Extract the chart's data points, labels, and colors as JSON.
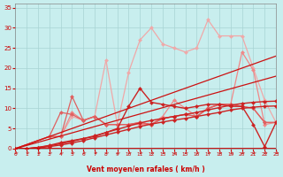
{
  "xlabel": "Vent moyen/en rafales ( km/h )",
  "bg_color": "#c8eeee",
  "grid_color": "#a8d4d4",
  "xlim": [
    0,
    23
  ],
  "ylim": [
    0,
    36
  ],
  "xticks": [
    0,
    1,
    2,
    3,
    4,
    5,
    6,
    7,
    8,
    9,
    10,
    11,
    12,
    13,
    14,
    15,
    16,
    17,
    18,
    19,
    20,
    21,
    22,
    23
  ],
  "yticks": [
    0,
    5,
    10,
    15,
    20,
    25,
    30,
    35
  ],
  "series": [
    {
      "x": [
        0,
        3,
        4,
        5,
        6,
        7,
        8,
        9,
        10,
        11,
        12,
        13,
        14,
        15,
        16,
        17,
        18,
        19,
        20,
        21,
        22,
        23
      ],
      "y": [
        0,
        3,
        3,
        8,
        7,
        8,
        22,
        6,
        19,
        27,
        30,
        26,
        25,
        24,
        25,
        32,
        28,
        28,
        28,
        20,
        12,
        6.5
      ],
      "color": "#f0a8a8",
      "lw": 0.9,
      "marker": "D",
      "ms": 2.2
    },
    {
      "x": [
        0,
        3,
        4,
        5,
        6,
        7,
        8,
        9,
        10,
        11,
        12,
        13,
        14,
        15,
        16,
        17,
        18,
        19,
        20,
        21,
        22,
        23
      ],
      "y": [
        0,
        3,
        3,
        9,
        7,
        8,
        6,
        6,
        6,
        6,
        6,
        8,
        12,
        10,
        8,
        10,
        11,
        11,
        24,
        19.5,
        6,
        6.5
      ],
      "color": "#f08888",
      "lw": 0.9,
      "marker": "D",
      "ms": 2.2
    },
    {
      "x": [
        0,
        3,
        4,
        5,
        6,
        7,
        8,
        9,
        10,
        11,
        12,
        13,
        14,
        15,
        16,
        17,
        18,
        19,
        20,
        21,
        22,
        23
      ],
      "y": [
        0,
        3,
        3,
        13,
        7,
        8,
        6,
        6,
        6,
        6.5,
        6,
        7.5,
        8,
        8.5,
        8,
        10,
        11,
        11,
        10.5,
        10,
        6.5,
        6.5
      ],
      "color": "#e06060",
      "lw": 0.9,
      "marker": "D",
      "ms": 2.2
    },
    {
      "x": [
        0,
        3,
        4,
        5,
        6,
        7,
        8,
        9,
        10,
        11,
        12,
        13,
        14,
        15,
        16,
        17,
        18,
        19,
        20,
        21,
        22,
        23
      ],
      "y": [
        0,
        3,
        9,
        8.5,
        7,
        8,
        6,
        6,
        6,
        6.5,
        6,
        7.5,
        8,
        8.5,
        8,
        10,
        11,
        11,
        10.5,
        10,
        6.5,
        6.5
      ],
      "color": "#e06060",
      "lw": 0.9,
      "marker": "D",
      "ms": 2.2
    },
    {
      "x": [
        0,
        1,
        2,
        3,
        4,
        5,
        6,
        7,
        8,
        9,
        10,
        11,
        12,
        13,
        14,
        15,
        16,
        17,
        18,
        19,
        20,
        21,
        22,
        23
      ],
      "y": [
        0,
        0,
        0.3,
        0.8,
        1.5,
        2,
        2.5,
        3,
        4,
        5,
        10.5,
        15,
        11.5,
        11,
        10.5,
        10,
        10.5,
        11,
        11,
        10.5,
        10.5,
        6,
        0.5,
        6.5
      ],
      "color": "#cc2222",
      "lw": 1.0,
      "marker": "D",
      "ms": 2.2
    },
    {
      "x": [
        0,
        1,
        2,
        3,
        4,
        5,
        6,
        7,
        8,
        9,
        10,
        11,
        12,
        13,
        14,
        15,
        16,
        17,
        18,
        19,
        20,
        21,
        22,
        23
      ],
      "y": [
        0,
        0,
        0.3,
        0.7,
        1.2,
        1.8,
        2.5,
        3.2,
        4.0,
        4.8,
        5.6,
        6.4,
        7.0,
        7.5,
        8.0,
        8.5,
        9.0,
        9.6,
        10.2,
        10.8,
        11.2,
        11.5,
        11.7,
        11.8
      ],
      "color": "#cc2222",
      "lw": 1.0,
      "marker": "D",
      "ms": 2.2
    },
    {
      "x": [
        0,
        1,
        2,
        3,
        4,
        5,
        6,
        7,
        8,
        9,
        10,
        11,
        12,
        13,
        14,
        15,
        16,
        17,
        18,
        19,
        20,
        21,
        22,
        23
      ],
      "y": [
        0,
        0,
        0.2,
        0.5,
        0.9,
        1.4,
        2.0,
        2.7,
        3.4,
        4.1,
        4.8,
        5.5,
        6.1,
        6.6,
        7.1,
        7.5,
        8.0,
        8.5,
        9.0,
        9.6,
        10.0,
        10.3,
        10.5,
        10.6
      ],
      "color": "#cc2222",
      "lw": 1.0,
      "marker": "D",
      "ms": 2.2
    },
    {
      "x": [
        0,
        23
      ],
      "y": [
        0,
        23
      ],
      "color": "#cc1111",
      "lw": 0.9,
      "marker": null,
      "ms": 0
    },
    {
      "x": [
        0,
        23
      ],
      "y": [
        0,
        18
      ],
      "color": "#cc1111",
      "lw": 0.9,
      "marker": null,
      "ms": 0
    }
  ],
  "arrows_x": [
    0,
    1,
    2,
    3,
    4,
    5,
    6,
    7,
    8,
    9,
    10,
    11,
    12,
    13,
    14,
    15,
    16,
    17,
    18,
    19,
    20,
    21,
    22,
    23
  ]
}
